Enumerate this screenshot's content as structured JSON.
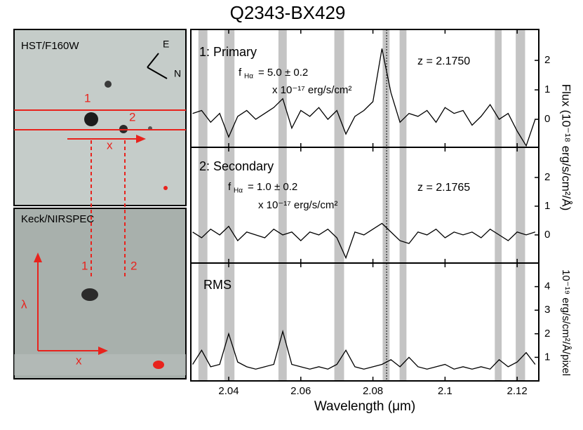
{
  "title": "Q2343-BX429",
  "x_label": "Wavelength (μm)",
  "flux_label": "Flux (10⁻¹⁸ erg/s/cm²/Å)",
  "images": {
    "hst": {
      "label": "HST/F160W",
      "east": "E",
      "north": "N",
      "slit1": "1",
      "slit2": "2",
      "axis": "x"
    },
    "keck": {
      "label": "Keck/NIRSPEC",
      "slit1": "1",
      "slit2": "2",
      "dispersion": "λ",
      "axis": "x"
    }
  },
  "chart_data": [
    {
      "type": "line",
      "label": "1: Primary",
      "flux": [
        "f",
        "Hα",
        "= 5.0 ± 0.2"
      ],
      "flux_unit": "x 10⁻¹⁷ erg/s/cm²",
      "redshift": "z = 2.1750",
      "x": [
        2.03,
        2.0325,
        2.035,
        2.0375,
        2.04,
        2.0425,
        2.045,
        2.0475,
        2.05,
        2.0525,
        2.055,
        2.0575,
        2.06,
        2.0625,
        2.065,
        2.0675,
        2.07,
        2.0725,
        2.075,
        2.0775,
        2.08,
        2.0825,
        2.085,
        2.0875,
        2.09,
        2.0925,
        2.095,
        2.0975,
        2.1,
        2.1025,
        2.105,
        2.1075,
        2.11,
        2.1125,
        2.115,
        2.1175,
        2.12,
        2.1225,
        2.125
      ],
      "values": [
        0.2,
        0.3,
        -0.1,
        0.2,
        -0.6,
        0.1,
        0.3,
        0.0,
        0.2,
        0.4,
        0.7,
        -0.3,
        0.3,
        0.1,
        0.4,
        0.0,
        0.3,
        -0.5,
        0.1,
        0.3,
        0.6,
        2.4,
        0.9,
        -0.1,
        0.2,
        0.1,
        0.3,
        -0.1,
        0.4,
        0.2,
        0.3,
        -0.2,
        0.1,
        0.5,
        0.0,
        0.2,
        -0.4,
        -0.9,
        0.0
      ],
      "color": "#000000",
      "xlim": [
        2.0295,
        2.126
      ],
      "ylim": [
        -0.95,
        3.05
      ],
      "yticks": [
        0,
        1,
        2
      ],
      "shaded": [
        [
          2.0316,
          2.0341
        ],
        [
          2.0388,
          2.0416
        ],
        [
          2.0538,
          2.0561
        ],
        [
          2.0693,
          2.072
        ],
        [
          2.0827,
          2.0846
        ],
        [
          2.0874,
          2.0893
        ],
        [
          2.1138,
          2.1157
        ],
        [
          2.1196,
          2.1222
        ]
      ],
      "shade_color": "#c4c4c4",
      "line_marker": 2.0838
    },
    {
      "type": "line",
      "label": "2: Secondary",
      "flux": [
        "f",
        "Hα",
        "= 1.0 ± 0.2"
      ],
      "flux_unit": "x 10⁻¹⁷ erg/s/cm²",
      "redshift": "z = 2.1765",
      "x": [
        2.03,
        2.0325,
        2.035,
        2.0375,
        2.04,
        2.0425,
        2.045,
        2.0475,
        2.05,
        2.0525,
        2.055,
        2.0575,
        2.06,
        2.0625,
        2.065,
        2.0675,
        2.07,
        2.0725,
        2.075,
        2.0775,
        2.08,
        2.0825,
        2.085,
        2.0875,
        2.09,
        2.0925,
        2.095,
        2.0975,
        2.1,
        2.1025,
        2.105,
        2.1075,
        2.11,
        2.1125,
        2.115,
        2.1175,
        2.12,
        2.1225,
        2.125
      ],
      "values": [
        0.1,
        -0.1,
        0.2,
        0.0,
        0.3,
        -0.2,
        0.1,
        0.0,
        -0.1,
        0.2,
        0.0,
        0.1,
        -0.2,
        0.1,
        0.0,
        0.2,
        -0.1,
        -0.8,
        0.1,
        0.0,
        0.2,
        0.4,
        0.1,
        -0.2,
        -0.3,
        0.1,
        0.0,
        0.2,
        -0.1,
        0.1,
        0.0,
        0.1,
        -0.1,
        0.2,
        0.0,
        -0.2,
        0.1,
        0.0,
        0.1
      ],
      "color": "#000000",
      "xlim": [
        2.0295,
        2.126
      ],
      "ylim": [
        -0.98,
        3.05
      ],
      "yticks": [
        0,
        1,
        2
      ],
      "shaded": [
        [
          2.0316,
          2.0341
        ],
        [
          2.0388,
          2.0416
        ],
        [
          2.0538,
          2.0561
        ],
        [
          2.0693,
          2.072
        ],
        [
          2.0827,
          2.0846
        ],
        [
          2.0874,
          2.0893
        ],
        [
          2.1138,
          2.1157
        ],
        [
          2.1196,
          2.1222
        ]
      ],
      "shade_color": "#c4c4c4",
      "line_marker": 2.0838
    },
    {
      "type": "line",
      "label": "RMS",
      "y_label": "10⁻¹⁹ erg/s/cm²/Å/pixel",
      "x": [
        2.03,
        2.0325,
        2.035,
        2.0375,
        2.04,
        2.0425,
        2.045,
        2.0475,
        2.05,
        2.0525,
        2.055,
        2.0575,
        2.06,
        2.0625,
        2.065,
        2.0675,
        2.07,
        2.0725,
        2.075,
        2.0775,
        2.08,
        2.0825,
        2.085,
        2.0875,
        2.09,
        2.0925,
        2.095,
        2.0975,
        2.1,
        2.1025,
        2.105,
        2.1075,
        2.11,
        2.1125,
        2.115,
        2.1175,
        2.12,
        2.1225,
        2.125
      ],
      "values": [
        0.7,
        1.3,
        0.6,
        0.7,
        2.0,
        0.8,
        0.6,
        0.5,
        0.6,
        0.7,
        2.1,
        0.7,
        0.6,
        0.5,
        0.6,
        0.5,
        0.7,
        1.3,
        0.6,
        0.5,
        0.6,
        0.7,
        0.9,
        0.6,
        1.0,
        0.6,
        0.5,
        0.6,
        0.7,
        0.5,
        0.6,
        0.5,
        0.6,
        0.5,
        0.9,
        0.6,
        0.8,
        1.2,
        0.7
      ],
      "color": "#000000",
      "xlim": [
        2.0295,
        2.126
      ],
      "ylim": [
        0,
        5.0
      ],
      "yticks": [
        1,
        2,
        3,
        4
      ],
      "xticks": [
        2.04,
        2.06,
        2.08,
        2.1,
        2.12
      ],
      "shaded": [
        [
          2.0316,
          2.0341
        ],
        [
          2.0388,
          2.0416
        ],
        [
          2.0538,
          2.0561
        ],
        [
          2.0693,
          2.072
        ],
        [
          2.0827,
          2.0846
        ],
        [
          2.0874,
          2.0893
        ],
        [
          2.1138,
          2.1157
        ],
        [
          2.1196,
          2.1222
        ]
      ],
      "shade_color": "#c4c4c4",
      "line_marker": 2.0838
    }
  ]
}
